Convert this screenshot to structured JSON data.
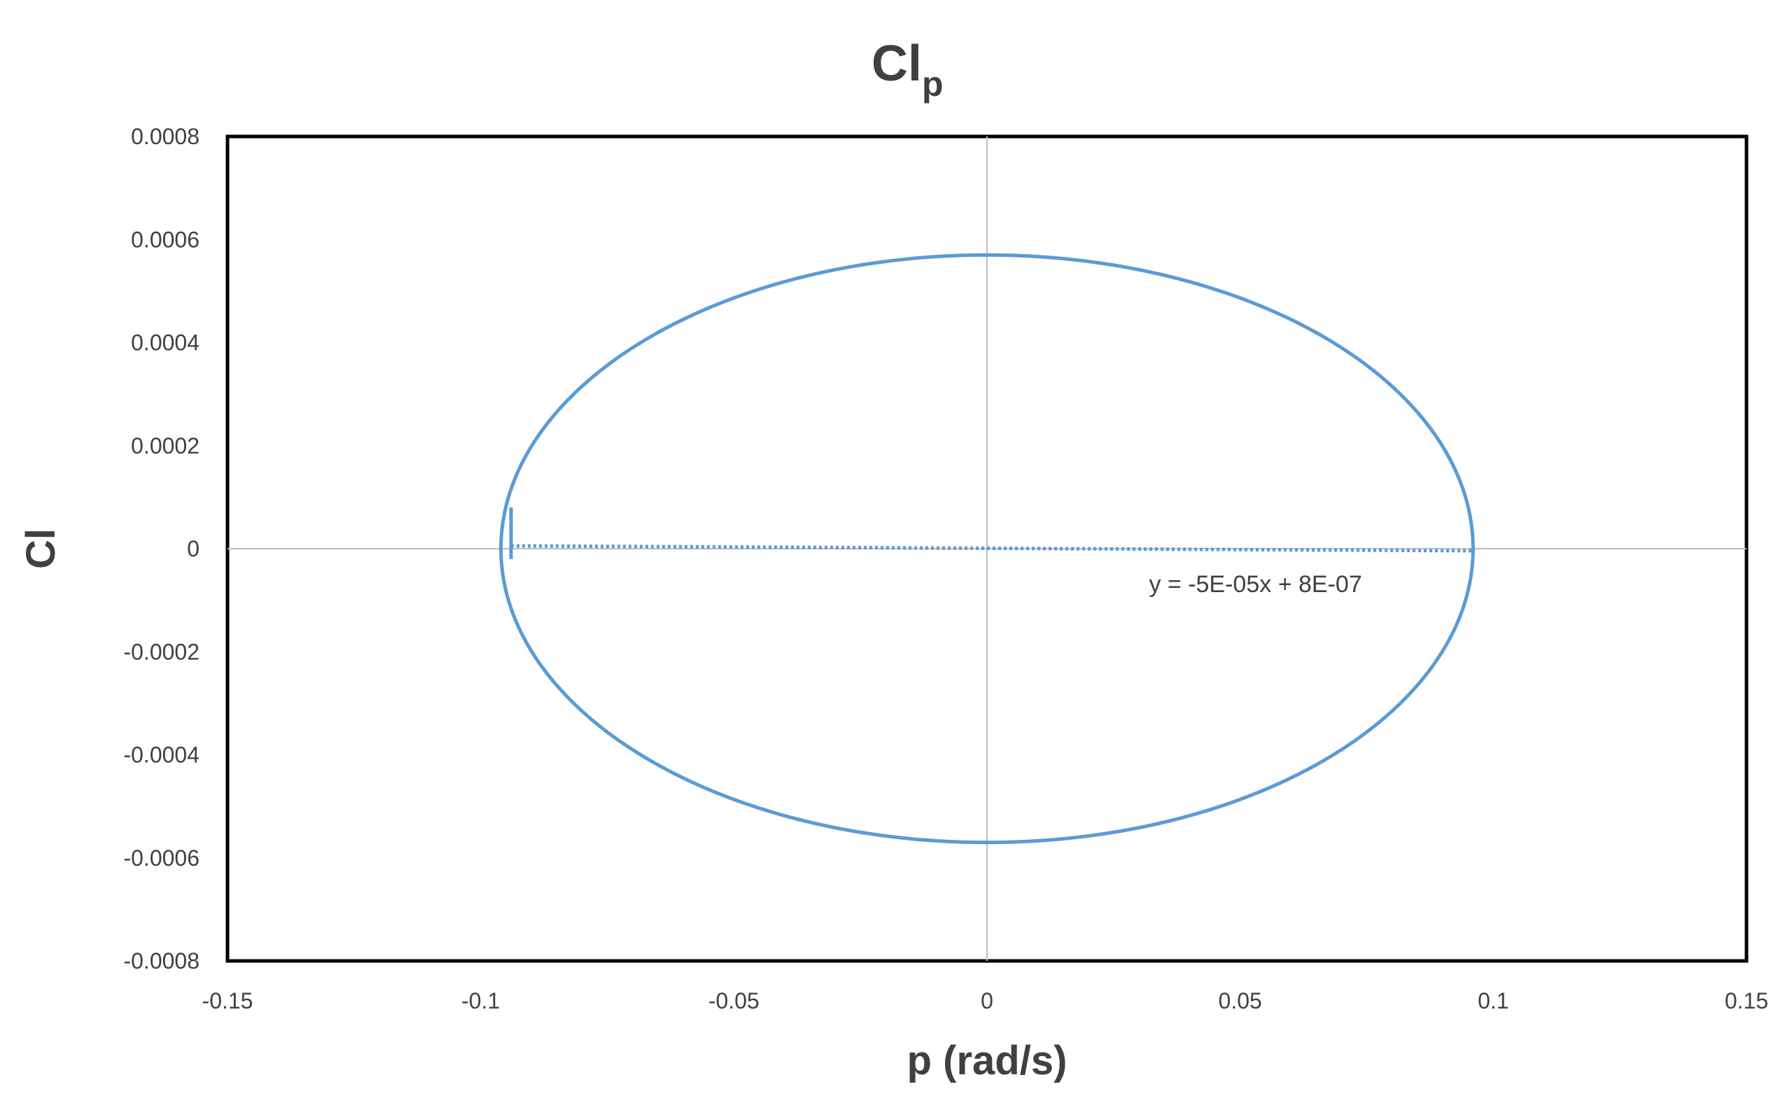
{
  "chart_data": {
    "type": "scatter",
    "title": "Cl",
    "title_subscript": "p",
    "xlabel": "p (rad/s)",
    "ylabel": "Cl",
    "xlim": [
      -0.15,
      0.15
    ],
    "ylim": [
      -0.0008,
      0.0008
    ],
    "x_ticks": [
      -0.15,
      -0.1,
      -0.05,
      0,
      0.05,
      0.1,
      0.15
    ],
    "x_tick_labels": [
      "-0.15",
      "-0.1",
      "-0.05",
      "0",
      "0.05",
      "0.1",
      "0.15"
    ],
    "y_ticks": [
      0.0008,
      0.0006,
      0.0004,
      0.0002,
      0,
      -0.0002,
      -0.0004,
      -0.0006,
      -0.0008
    ],
    "y_tick_labels": [
      "0.0008",
      "0.0006",
      "0.0004",
      "0.0002",
      "0",
      "-0.0002",
      "-0.0004",
      "-0.0006",
      "-0.0008"
    ],
    "grid": false,
    "zero_lines": true,
    "legend": "none",
    "series": [
      {
        "color": "#5B9BD5",
        "shape": "ellipse",
        "center": [
          0,
          0
        ],
        "x_amplitude": 0.096,
        "y_amplitude": 0.00057,
        "x": [
          0.096,
          0.0832,
          0.048,
          0,
          -0.048,
          -0.0832,
          -0.096,
          -0.0832,
          -0.048,
          0,
          0.048,
          0.0832,
          0.096
        ],
        "y": [
          0,
          0.000285,
          0.000494,
          0.00057,
          0.000494,
          0.000285,
          0,
          -0.000285,
          -0.000494,
          -0.00057,
          -0.000494,
          -0.000285,
          0
        ]
      }
    ],
    "trendline": {
      "color": "#5B9BD5",
      "style": "dotted",
      "slope": -5e-05,
      "intercept": 8e-07,
      "x_range": [
        -0.094,
        0.096
      ],
      "equation": "y = -5E-05x + 8E-07"
    }
  }
}
